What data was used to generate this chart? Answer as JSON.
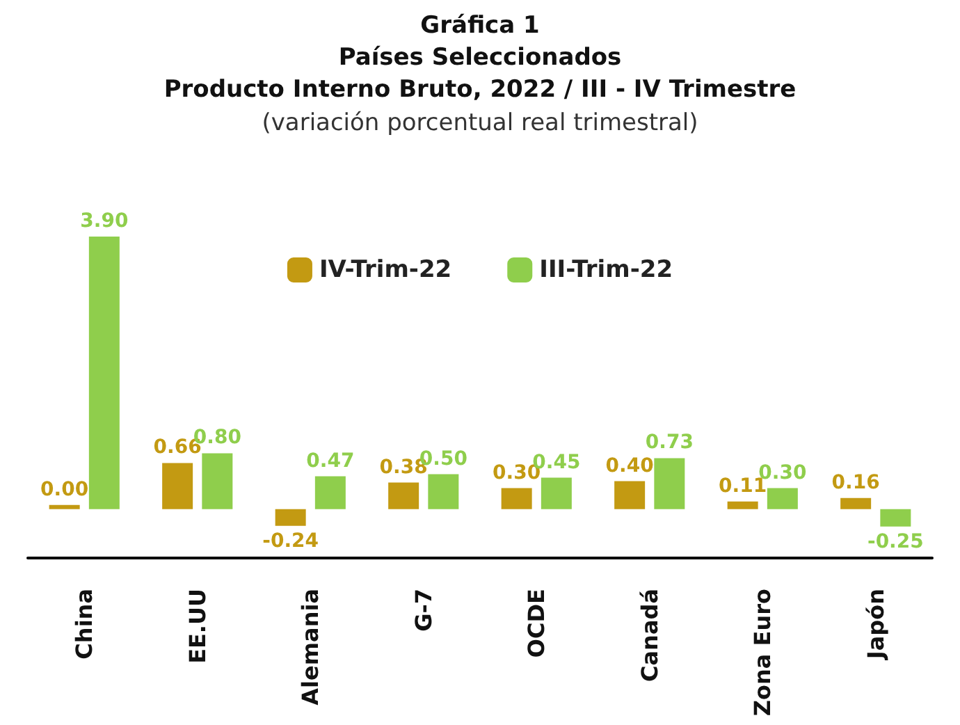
{
  "chart_data": {
    "type": "bar",
    "title": "Gráfica 1\nPaíses Seleccionados\nProducto Interno Bruto, 2022 / III - IV Trimestre",
    "subtitle": "(variación porcentual real trimestral)",
    "categories": [
      "China",
      "EE.UU",
      "Alemania",
      "G-7",
      "OCDE",
      "Canadá",
      "Zona Euro",
      "Japón"
    ],
    "series": [
      {
        "name": "IV-Trim-22",
        "color": "#c39a12",
        "values": [
          0.0,
          0.66,
          -0.24,
          0.38,
          0.3,
          0.4,
          0.11,
          0.16
        ],
        "value_labels": [
          "0.00",
          "0.66",
          "-0.24",
          "0.38",
          "0.30",
          "0.40",
          "0.11",
          "0.16"
        ]
      },
      {
        "name": "III-Trim-22",
        "color": "#8fce4c",
        "values": [
          3.9,
          0.8,
          0.47,
          0.5,
          0.45,
          0.73,
          0.3,
          -0.25
        ],
        "value_labels": [
          "3.90",
          "0.80",
          "0.47",
          "0.50",
          "0.45",
          "0.73",
          "0.30",
          "-0.25"
        ]
      }
    ],
    "legend": "top",
    "tick_labels": "x",
    "grid": false
  }
}
